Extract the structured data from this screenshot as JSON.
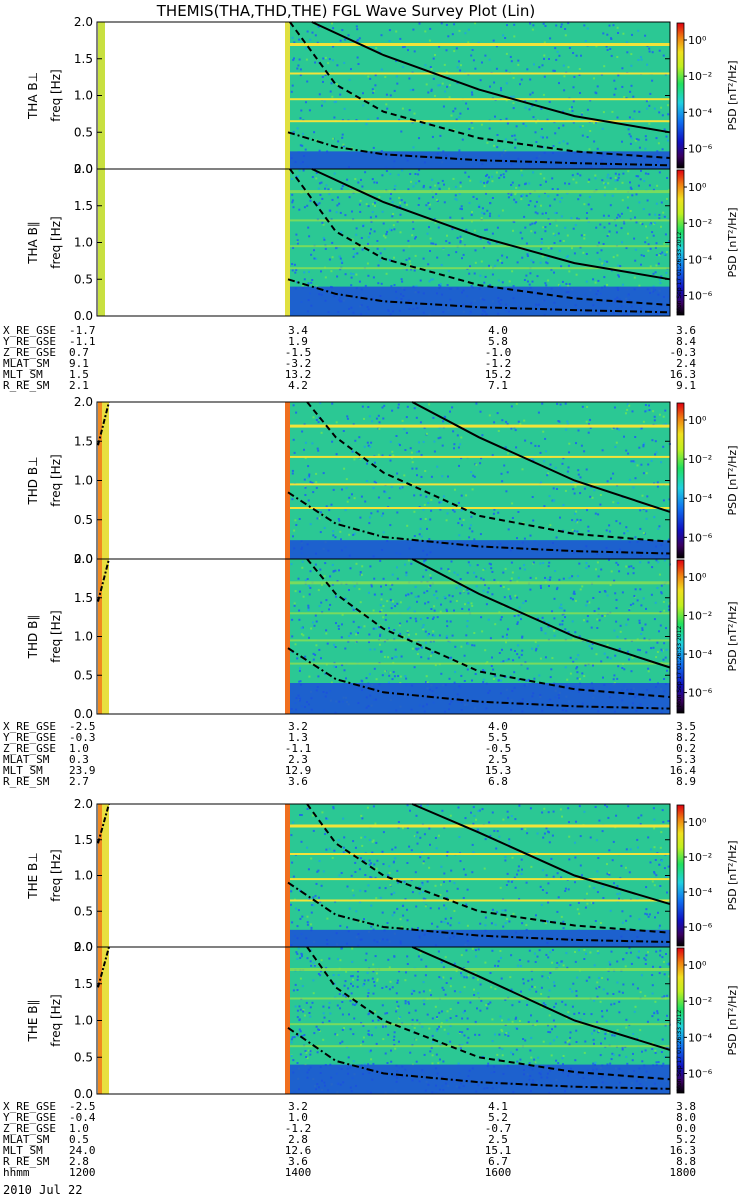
{
  "title": "THEMIS(THA,THD,THE) FGL Wave Survey Plot (Lin)",
  "colorbar": {
    "label": "PSD [nT²/Hz]",
    "ticks": [
      "10⁰",
      "10⁻²",
      "10⁻⁴",
      "10⁻⁶"
    ],
    "timestamp": "Mon Sep 17 01:26:33 2012"
  },
  "freq_axis_label": "freq [Hz]",
  "freq_ticks": [
    "0.0",
    "0.5",
    "1.0",
    "1.5",
    "2.0"
  ],
  "colors": {
    "background": "#ffffff",
    "spectrogram_base": "#2bc894",
    "low_band": "#1b4fd8",
    "line_band": "#f2e33a",
    "curve": "#000000"
  },
  "chart_data": [
    {
      "type": "heatmap",
      "name": "THA B⊥",
      "ylabel": "THA B⊥",
      "ylim": [
        0,
        2.0
      ],
      "x_unit": "hhmm",
      "xlim": [
        1200,
        1800
      ],
      "solid_curve": [
        [
          1425,
          2.0
        ],
        [
          1500,
          1.55
        ],
        [
          1600,
          1.08
        ],
        [
          1700,
          0.72
        ],
        [
          1800,
          0.5
        ]
      ],
      "dashed_curve": [
        [
          1402,
          2.0
        ],
        [
          1450,
          1.15
        ],
        [
          1500,
          0.78
        ],
        [
          1600,
          0.42
        ],
        [
          1700,
          0.24
        ],
        [
          1800,
          0.15
        ]
      ],
      "dotdash_curve": [
        [
          1400,
          0.5
        ],
        [
          1450,
          0.3
        ],
        [
          1500,
          0.2
        ],
        [
          1600,
          0.12
        ],
        [
          1700,
          0.08
        ],
        [
          1800,
          0.05
        ]
      ]
    },
    {
      "type": "heatmap",
      "name": "THA B∥",
      "ylabel": "THA B∥",
      "ylim": [
        0,
        2.0
      ],
      "x_unit": "hhmm",
      "xlim": [
        1200,
        1800
      ],
      "solid_curve": [
        [
          1425,
          2.0
        ],
        [
          1500,
          1.55
        ],
        [
          1600,
          1.08
        ],
        [
          1700,
          0.72
        ],
        [
          1800,
          0.5
        ]
      ],
      "dashed_curve": [
        [
          1402,
          2.0
        ],
        [
          1450,
          1.15
        ],
        [
          1500,
          0.78
        ],
        [
          1600,
          0.42
        ],
        [
          1700,
          0.24
        ],
        [
          1800,
          0.15
        ]
      ],
      "dotdash_curve": [
        [
          1400,
          0.5
        ],
        [
          1450,
          0.3
        ],
        [
          1500,
          0.2
        ],
        [
          1600,
          0.12
        ],
        [
          1700,
          0.08
        ],
        [
          1800,
          0.05
        ]
      ]
    },
    {
      "type": "heatmap",
      "name": "THD B⊥",
      "ylabel": "THD B⊥",
      "ylim": [
        0,
        2.0
      ],
      "x_unit": "hhmm",
      "xlim": [
        1200,
        1800
      ],
      "solid_curve": [
        [
          1530,
          2.0
        ],
        [
          1600,
          1.55
        ],
        [
          1700,
          1.0
        ],
        [
          1800,
          0.6
        ]
      ],
      "dashed_curve": [
        [
          1420,
          2.0
        ],
        [
          1450,
          1.55
        ],
        [
          1500,
          1.1
        ],
        [
          1600,
          0.55
        ],
        [
          1700,
          0.32
        ],
        [
          1800,
          0.22
        ]
      ],
      "dotdash_curve": [
        [
          1400,
          0.85
        ],
        [
          1450,
          0.45
        ],
        [
          1500,
          0.28
        ],
        [
          1600,
          0.16
        ],
        [
          1700,
          0.1
        ],
        [
          1800,
          0.07
        ]
      ]
    },
    {
      "type": "heatmap",
      "name": "THD B∥",
      "ylabel": "THD B∥",
      "ylim": [
        0,
        2.0
      ],
      "x_unit": "hhmm",
      "xlim": [
        1200,
        1800
      ],
      "solid_curve": [
        [
          1530,
          2.0
        ],
        [
          1600,
          1.55
        ],
        [
          1700,
          1.0
        ],
        [
          1800,
          0.6
        ]
      ],
      "dashed_curve": [
        [
          1420,
          2.0
        ],
        [
          1450,
          1.55
        ],
        [
          1500,
          1.1
        ],
        [
          1600,
          0.55
        ],
        [
          1700,
          0.32
        ],
        [
          1800,
          0.22
        ]
      ],
      "dotdash_curve": [
        [
          1400,
          0.85
        ],
        [
          1450,
          0.45
        ],
        [
          1500,
          0.28
        ],
        [
          1600,
          0.16
        ],
        [
          1700,
          0.1
        ],
        [
          1800,
          0.07
        ]
      ]
    },
    {
      "type": "heatmap",
      "name": "THE B⊥",
      "ylabel": "THE B⊥",
      "ylim": [
        0,
        2.0
      ],
      "x_unit": "hhmm",
      "xlim": [
        1200,
        1800
      ],
      "solid_curve": [
        [
          1530,
          2.0
        ],
        [
          1600,
          1.6
        ],
        [
          1700,
          1.0
        ],
        [
          1800,
          0.6
        ]
      ],
      "dashed_curve": [
        [
          1420,
          2.0
        ],
        [
          1450,
          1.45
        ],
        [
          1500,
          1.0
        ],
        [
          1600,
          0.5
        ],
        [
          1700,
          0.3
        ],
        [
          1800,
          0.2
        ]
      ],
      "dotdash_curve": [
        [
          1400,
          0.9
        ],
        [
          1450,
          0.45
        ],
        [
          1500,
          0.28
        ],
        [
          1600,
          0.16
        ],
        [
          1700,
          0.1
        ],
        [
          1800,
          0.07
        ]
      ]
    },
    {
      "type": "heatmap",
      "name": "THE B∥",
      "ylabel": "THE B∥",
      "ylim": [
        0,
        2.0
      ],
      "x_unit": "hhmm",
      "xlim": [
        1200,
        1800
      ],
      "solid_curve": [
        [
          1530,
          2.0
        ],
        [
          1600,
          1.6
        ],
        [
          1700,
          1.0
        ],
        [
          1800,
          0.6
        ]
      ],
      "dashed_curve": [
        [
          1420,
          2.0
        ],
        [
          1450,
          1.45
        ],
        [
          1500,
          1.0
        ],
        [
          1600,
          0.5
        ],
        [
          1700,
          0.3
        ],
        [
          1800,
          0.2
        ]
      ],
      "dotdash_curve": [
        [
          1400,
          0.9
        ],
        [
          1450,
          0.45
        ],
        [
          1500,
          0.28
        ],
        [
          1600,
          0.16
        ],
        [
          1700,
          0.1
        ],
        [
          1800,
          0.07
        ]
      ]
    }
  ],
  "ephemeris_tables": [
    {
      "probe": "THA",
      "rows": [
        {
          "label": "X_RE_GSE",
          "values": [
            "-1.7",
            "3.4",
            "4.0",
            "3.6"
          ]
        },
        {
          "label": "Y_RE_GSE",
          "values": [
            "-1.1",
            "1.9",
            "5.8",
            "8.4"
          ]
        },
        {
          "label": "Z_RE_GSE",
          "values": [
            "0.7",
            "-1.5",
            "-1.0",
            "-0.3"
          ]
        },
        {
          "label": "MLAT_SM",
          "values": [
            "9.1",
            "-3.2",
            "-1.2",
            "2.4"
          ]
        },
        {
          "label": "MLT_SM",
          "values": [
            "1.5",
            "13.2",
            "15.2",
            "16.3"
          ]
        },
        {
          "label": "R_RE_SM",
          "values": [
            "2.1",
            "4.2",
            "7.1",
            "9.1"
          ]
        }
      ]
    },
    {
      "probe": "THD",
      "rows": [
        {
          "label": "X_RE_GSE",
          "values": [
            "-2.5",
            "3.2",
            "4.0",
            "3.5"
          ]
        },
        {
          "label": "Y_RE_GSE",
          "values": [
            "-0.3",
            "1.3",
            "5.5",
            "8.2"
          ]
        },
        {
          "label": "Z_RE_GSE",
          "values": [
            "1.0",
            "-1.1",
            "-0.5",
            "0.2"
          ]
        },
        {
          "label": "MLAT_SM",
          "values": [
            "0.3",
            "2.3",
            "2.5",
            "5.3"
          ]
        },
        {
          "label": "MLT_SM",
          "values": [
            "23.9",
            "12.9",
            "15.3",
            "16.4"
          ]
        },
        {
          "label": "R_RE_SM",
          "values": [
            "2.7",
            "3.6",
            "6.8",
            "8.9"
          ]
        }
      ]
    },
    {
      "probe": "THE",
      "rows": [
        {
          "label": "X_RE_GSE",
          "values": [
            "-2.5",
            "3.2",
            "4.1",
            "3.8"
          ]
        },
        {
          "label": "Y_RE_GSE",
          "values": [
            "-0.4",
            "1.0",
            "5.2",
            "8.0"
          ]
        },
        {
          "label": "Z_RE_GSE",
          "values": [
            "1.0",
            "-1.2",
            "-0.7",
            "0.0"
          ]
        },
        {
          "label": "MLAT_SM",
          "values": [
            "0.5",
            "2.8",
            "2.5",
            "5.2"
          ]
        },
        {
          "label": "MLT_SM",
          "values": [
            "24.0",
            "12.6",
            "15.1",
            "16.3"
          ]
        },
        {
          "label": "R_RE_SM",
          "values": [
            "2.8",
            "3.6",
            "6.7",
            "8.8"
          ]
        },
        {
          "label": "hhmm",
          "values": [
            "1200",
            "1400",
            "1600",
            "1800"
          ]
        }
      ]
    }
  ],
  "date_label": "2010 Jul 22"
}
